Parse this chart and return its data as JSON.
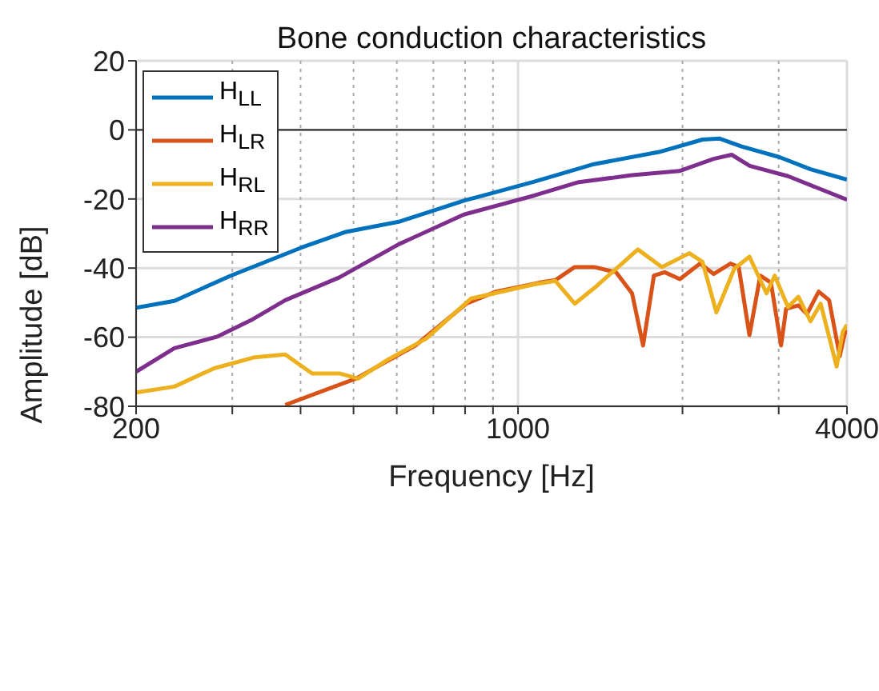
{
  "chart_data": {
    "type": "line",
    "title": "Bone conduction characteristics",
    "xlabel": "Frequency [Hz]",
    "ylabel": "Amplitude [dB]",
    "log": "x",
    "xlim": [
      200,
      4000
    ],
    "xticks": [
      200,
      {
        "value": 300,
        "label": null
      },
      {
        "value": 400,
        "label": null
      },
      {
        "value": 500,
        "label": null
      },
      {
        "value": 600,
        "label": null
      },
      {
        "value": 700,
        "label": null
      },
      {
        "value": 800,
        "label": null
      },
      {
        "value": 900,
        "label": null
      },
      1000,
      {
        "value": 2000,
        "label": null
      },
      {
        "value": 3000,
        "label": null
      },
      4000
    ],
    "ylim": [
      -80,
      20
    ],
    "yticks": [
      -80,
      -60,
      -40,
      -20,
      0,
      20
    ],
    "grid": true,
    "legend": "top left",
    "line_style": "solid",
    "marker": "none",
    "ref_lines": [
      {
        "axis": "y",
        "value": 0,
        "color": "#333333"
      }
    ],
    "series": [
      {
        "name": "H$_{LL}$",
        "color": "#0072bd",
        "x": [
          200,
          235,
          298,
          401,
          482,
          605,
          796,
          873,
          1071,
          1378,
          1812,
          2176,
          2335,
          2565,
          3010,
          3430,
          4000
        ],
        "values": [
          -51.5,
          -49.5,
          -42.2,
          -34.1,
          -29.6,
          -26.6,
          -20.5,
          -18.8,
          -15,
          -9.9,
          -6.4,
          -2.8,
          -2.5,
          -4.8,
          -7.9,
          -11.4,
          -14.4
        ]
      },
      {
        "name": "H$_{LR}$",
        "color": "#d95319",
        "x": [
          375,
          505,
          649,
          804,
          911,
          1096,
          1170,
          1270,
          1378,
          1512,
          1617,
          1694,
          1773,
          1855,
          1978,
          2154,
          2280,
          2448,
          2535,
          2652,
          2776,
          2903,
          3030,
          3095,
          3260,
          3380,
          3550,
          3710,
          3880,
          3970,
          4000
        ],
        "values": [
          -79.6,
          -72,
          -62.4,
          -50.3,
          -46.8,
          -44.2,
          -43.5,
          -39.7,
          -39.7,
          -41.2,
          -47.3,
          -62.4,
          -42.2,
          -41.2,
          -43.2,
          -38.7,
          -41.7,
          -38.7,
          -39.7,
          -59.4,
          -42.2,
          -44.2,
          -62.4,
          -51.8,
          -50.8,
          -53.3,
          -46.8,
          -49.3,
          -65.5,
          -58.4,
          -58.4
        ]
      },
      {
        "name": "H$_{RL}$",
        "color": "#edb120",
        "x": [
          200,
          235,
          278,
          330,
          375,
          420,
          471,
          510,
          578,
          679,
          821,
          1071,
          1170,
          1270,
          1378,
          1512,
          1657,
          1834,
          2058,
          2176,
          2307,
          2488,
          2652,
          2850,
          2950,
          3120,
          3260,
          3430,
          3580,
          3830,
          3930,
          4000
        ],
        "values": [
          -76,
          -74.3,
          -69,
          -65.8,
          -65,
          -70.5,
          -70.5,
          -72,
          -66.5,
          -60.4,
          -48.8,
          -44.7,
          -43.7,
          -50.3,
          -45.8,
          -40.2,
          -34.6,
          -39.7,
          -35.7,
          -38.2,
          -52.8,
          -40.2,
          -36.7,
          -47.3,
          -42.2,
          -51.3,
          -48.3,
          -55.4,
          -50.3,
          -68.5,
          -58.4,
          -56.4
        ]
      },
      {
        "name": "H$_{RR}$",
        "color": "#7e2f8e",
        "x": [
          200,
          235,
          281,
          327,
          375,
          471,
          605,
          796,
          1071,
          1285,
          1617,
          1974,
          2280,
          2461,
          2655,
          3120,
          4000
        ],
        "values": [
          -70,
          -63.2,
          -59.9,
          -54.8,
          -49.3,
          -42.7,
          -33.1,
          -24.5,
          -19,
          -15.2,
          -13.1,
          -11.9,
          -8.4,
          -7.2,
          -10.4,
          -13.4,
          -20.2
        ]
      }
    ]
  }
}
